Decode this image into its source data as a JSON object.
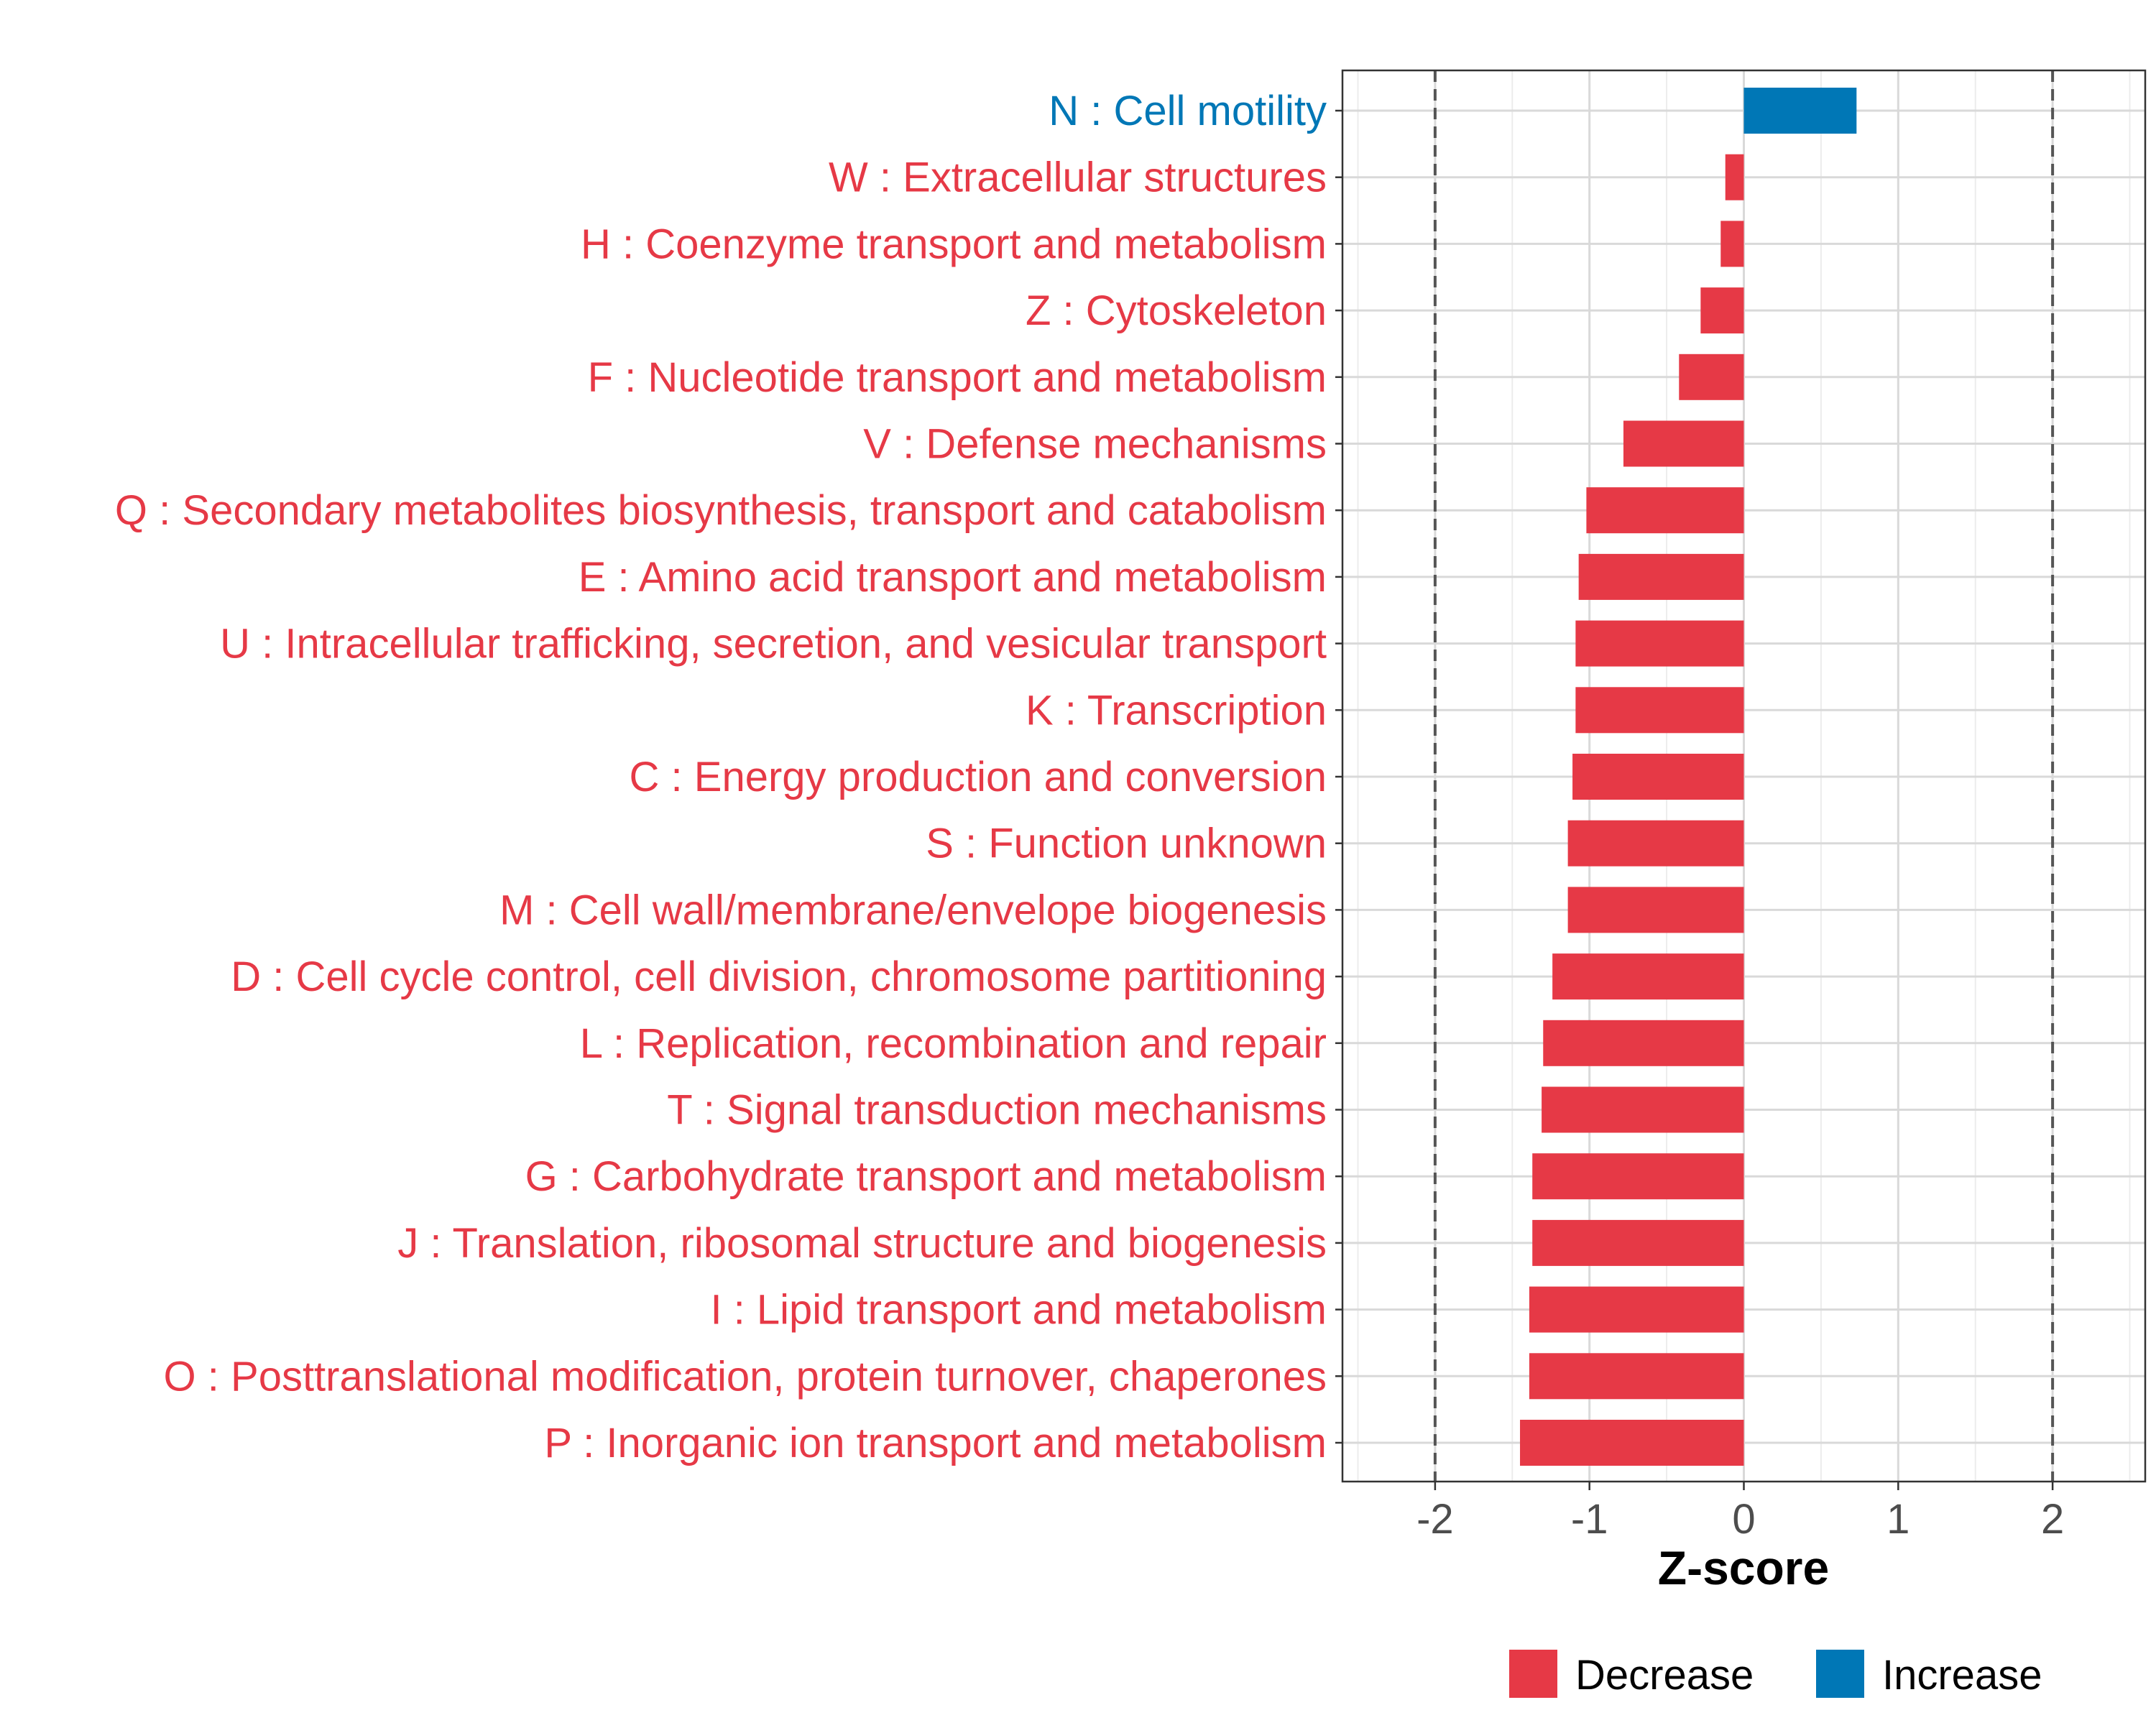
{
  "chart_data": {
    "type": "bar",
    "orientation": "horizontal",
    "title": "",
    "xlabel": "Z-score",
    "ylabel": "",
    "xlim": [
      -2.6,
      2.6
    ],
    "xticks": [
      -2,
      -1,
      0,
      1,
      2
    ],
    "xtick_labels": [
      "-2",
      "-1",
      "0",
      "1",
      "2"
    ],
    "reference_lines": [
      -2,
      2
    ],
    "grid": true,
    "colors": {
      "Decrease": "#e63946",
      "Increase": "#0077b6"
    },
    "categories": [
      "N : Cell motility",
      "W : Extracellular structures",
      "H : Coenzyme transport and metabolism",
      "Z : Cytoskeleton",
      "F : Nucleotide transport and metabolism",
      "V : Defense mechanisms",
      "Q : Secondary metabolites biosynthesis, transport and catabolism",
      "E : Amino acid transport and metabolism",
      "U : Intracellular trafficking, secretion, and vesicular transport",
      "K : Transcription",
      "C : Energy production and conversion",
      "S : Function unknown",
      "M : Cell wall/membrane/envelope biogenesis",
      "D : Cell cycle control, cell division, chromosome partitioning",
      "L : Replication, recombination and repair",
      "T : Signal transduction mechanisms",
      "G : Carbohydrate transport and metabolism",
      "J : Translation, ribosomal structure and biogenesis",
      "I : Lipid transport and metabolism",
      "O : Posttranslational modification, protein turnover, chaperones",
      "P : Inorganic ion transport and metabolism"
    ],
    "values": [
      0.73,
      -0.12,
      -0.15,
      -0.28,
      -0.42,
      -0.78,
      -1.02,
      -1.07,
      -1.09,
      -1.09,
      -1.11,
      -1.14,
      -1.14,
      -1.24,
      -1.3,
      -1.31,
      -1.37,
      -1.37,
      -1.39,
      -1.39,
      -1.45
    ],
    "groups": [
      "Increase",
      "Decrease",
      "Decrease",
      "Decrease",
      "Decrease",
      "Decrease",
      "Decrease",
      "Decrease",
      "Decrease",
      "Decrease",
      "Decrease",
      "Decrease",
      "Decrease",
      "Decrease",
      "Decrease",
      "Decrease",
      "Decrease",
      "Decrease",
      "Decrease",
      "Decrease",
      "Decrease"
    ],
    "legend": {
      "position": "bottom",
      "entries": [
        {
          "label": "Decrease",
          "color": "#e63946"
        },
        {
          "label": "Increase",
          "color": "#0077b6"
        }
      ]
    }
  }
}
